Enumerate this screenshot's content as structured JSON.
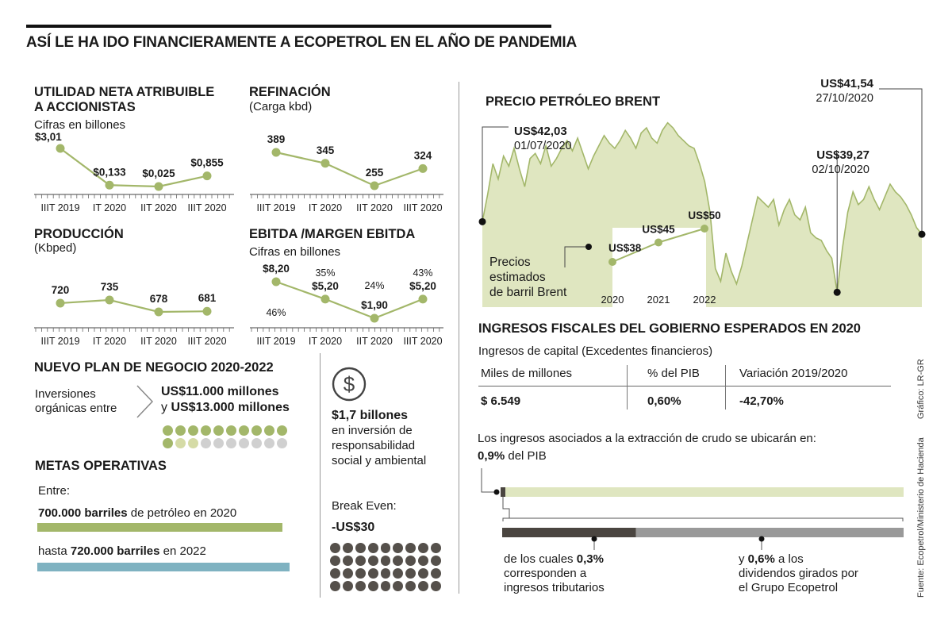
{
  "title": "ASÍ LE HA IDO FINANCIERAMENTE A ECOPETROL EN EL AÑO DE PANDEMIA",
  "colors": {
    "green": "#a3b76a",
    "green_fill": "#dfe6c0",
    "light_green": "#d5dba6",
    "blue": "#7fb2c1",
    "dark": "#4a4540",
    "gray": "#999999",
    "dark_dot": "#55504b",
    "light_gray_dot": "#d0d0d0"
  },
  "chart_data": [
    {
      "type": "line",
      "title": "UTILIDAD NETA ATRIBUIBLE A ACCIONISTAS",
      "subtitle": "Cifras en billones",
      "categories": [
        "IIIT 2019",
        "IT 2020",
        "IIT 2020",
        "IIIT 2020"
      ],
      "values": [
        3.01,
        0.133,
        0.025,
        0.855
      ],
      "labels": [
        "$3,01",
        "$0,133",
        "$0,025",
        "$0,855"
      ]
    },
    {
      "type": "line",
      "title": "REFINACIÓN",
      "subtitle": "(Carga kbd)",
      "categories": [
        "IIIT 2019",
        "IT 2020",
        "IIT 2020",
        "IIIT 2020"
      ],
      "values": [
        389,
        345,
        255,
        324
      ],
      "labels": [
        "389",
        "345",
        "255",
        "324"
      ]
    },
    {
      "type": "line",
      "title": "PRODUCCIÓN",
      "subtitle": "(Kbped)",
      "categories": [
        "IIIT 2019",
        "IT 2020",
        "IIT 2020",
        "IIIT 2020"
      ],
      "values": [
        720,
        735,
        678,
        681
      ],
      "labels": [
        "720",
        "735",
        "678",
        "681"
      ]
    },
    {
      "type": "line",
      "title": "EBITDA /MARGEN EBITDA",
      "subtitle": "Cifras en billones",
      "categories": [
        "IIIT 2019",
        "IT 2020",
        "IIT 2020",
        "IIIT 2020"
      ],
      "values": [
        8.2,
        5.2,
        1.9,
        5.2
      ],
      "labels": [
        "$8,20",
        "$5,20",
        "$1,90",
        "$5,20"
      ],
      "margins": [
        "46%",
        "35%",
        "24%",
        "43%"
      ]
    },
    {
      "type": "area",
      "title": "PRECIO PETRÓLEO BRENT",
      "annotations": [
        {
          "price": "US$42,03",
          "date": "01/07/2020",
          "value": 42.03
        },
        {
          "price": "US$39,27",
          "date": "02/10/2020",
          "value": 39.27
        },
        {
          "price": "US$41,54",
          "date": "27/10/2020",
          "value": 41.54
        }
      ],
      "values": [
        42.03,
        43.1,
        44.3,
        43.7,
        44.6,
        44.2,
        44.9,
        44.1,
        43.4,
        44.5,
        44.7,
        44.3,
        45.0,
        44.2,
        44.5,
        44.9,
        45.2,
        44.8,
        45.3,
        44.7,
        44.1,
        44.6,
        45.0,
        45.4,
        45.1,
        44.9,
        45.2,
        45.6,
        45.3,
        44.9,
        45.5,
        45.7,
        45.3,
        45.1,
        45.6,
        45.9,
        45.7,
        45.4,
        45.2,
        45.0,
        44.9,
        44.3,
        43.6,
        42.4,
        40.2,
        39.7,
        40.8,
        40.1,
        39.6,
        40.3,
        41.2,
        42.1,
        43.0,
        42.8,
        42.6,
        42.9,
        41.9,
        42.5,
        42.9,
        42.3,
        42.1,
        42.6,
        41.6,
        41.4,
        41.3,
        40.9,
        40.6,
        39.27,
        41.0,
        42.4,
        43.2,
        42.7,
        42.9,
        43.4,
        42.9,
        42.5,
        43.0,
        43.5,
        43.2,
        43.0,
        42.7,
        42.3,
        41.8,
        41.54
      ]
    },
    {
      "type": "line",
      "title": "Precios estimados de barril Brent",
      "categories": [
        "2020",
        "2021",
        "2022"
      ],
      "values": [
        38,
        45,
        50
      ],
      "labels": [
        "US$38",
        "US$45",
        "US$50"
      ]
    }
  ],
  "brent_label": [
    "Precios",
    "estimados",
    "de barril Brent"
  ],
  "plan": {
    "title": "NUEVO PLAN DE NEGOCIO 2020-2022",
    "investments_label_1": "Inversiones",
    "investments_label_2": "orgánicas entre",
    "range_1": "US$11.000 millones",
    "range_2_prefix": "y ",
    "range_2": "US$13.000 millones",
    "social_bold": "$1,7 billones",
    "social_1": "en inversión de",
    "social_2": "responsabilidad",
    "social_3": "social y ambiental",
    "break_even_label": "Break Even:",
    "break_even_value": "-US$30"
  },
  "metas": {
    "title": "METAS OPERATIVAS",
    "entre": "Entre:",
    "line1_bold": "700.000 barriles",
    "line1_rest": " de petróleo en 2020",
    "line2_pre": "hasta ",
    "line2_bold": "720.000 barriles",
    "line2_rest": " en 2022"
  },
  "fiscal": {
    "title": "INGRESOS FISCALES DEL GOBIERNO ESPERADOS EN 2020",
    "subtitle": "Ingresos de capital (Excedentes financieros)",
    "headers": [
      "Miles de millones",
      "% del PIB",
      "Variación 2019/2020"
    ],
    "values": [
      "$ 6.549",
      "0,60%",
      "-42,70%"
    ],
    "crudo_text": "Los ingresos asociados a la extracción de crudo se ubicarán en:",
    "crudo_bold": "0,9%",
    "crudo_rest": " del PIB",
    "tributarios_pre": "de los cuales ",
    "tributarios_bold": "0,3%",
    "tributarios_2": "corresponden a",
    "tributarios_3": "ingresos tributarios",
    "dividendos_pre": "y ",
    "dividendos_bold": "0,6%",
    "dividendos_rest": " a los",
    "dividendos_2": "dividendos girados por",
    "dividendos_3": "el Grupo Ecopetrol",
    "split_pct": [
      0.3,
      0.6
    ]
  },
  "credits": {
    "grafico": "Gráfico: LR-GR",
    "fuente": "Fuente: Ecopetrol/Ministerio de Hacienda"
  }
}
